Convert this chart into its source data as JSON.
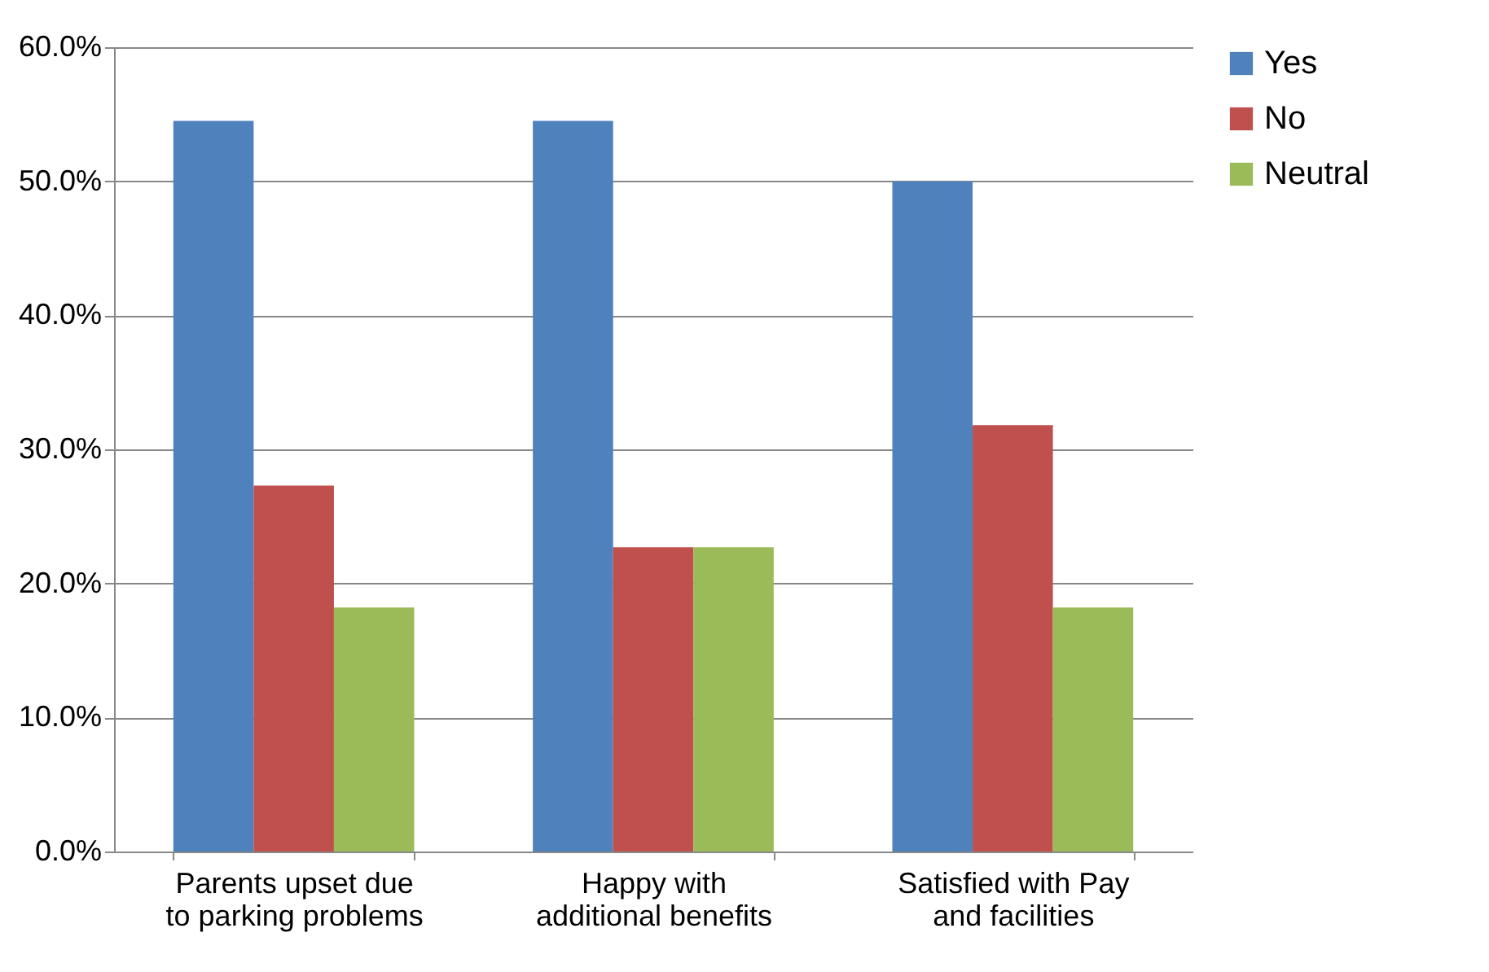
{
  "chart_data": {
    "type": "bar",
    "categories": [
      "Parents upset due to parking problems",
      "Happy with additional benefits",
      "Satisfied with Pay and facilities"
    ],
    "series": [
      {
        "name": "Yes",
        "color": "#4f81bd",
        "values": [
          54.5,
          54.5,
          50.0
        ]
      },
      {
        "name": "No",
        "color": "#c0504d",
        "values": [
          27.3,
          22.7,
          31.8
        ]
      },
      {
        "name": "Neutral",
        "color": "#9bbb59",
        "values": [
          18.2,
          22.7,
          18.2
        ]
      }
    ],
    "ylim": [
      0,
      60
    ],
    "yticks": [
      {
        "value": 0,
        "label": "0.0%"
      },
      {
        "value": 10,
        "label": "10.0%"
      },
      {
        "value": 20,
        "label": "20.0%"
      },
      {
        "value": 30,
        "label": "30.0%"
      },
      {
        "value": 40,
        "label": "40.0%"
      },
      {
        "value": 50,
        "label": "50.0%"
      },
      {
        "value": 60,
        "label": "60.0%"
      }
    ],
    "grid": "y",
    "legend": "right"
  }
}
